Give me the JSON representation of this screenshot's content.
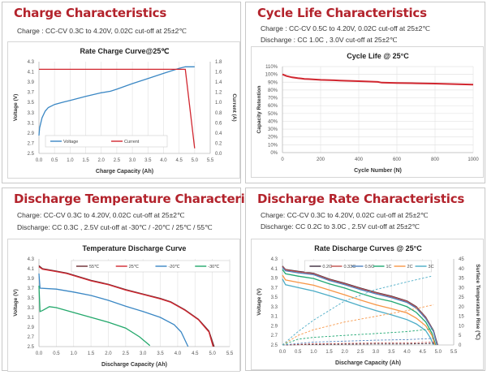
{
  "panels": [
    {
      "title": "Charge Characteristics",
      "conditions": [
        "Charge : CC-CV 0.3C to 4.20V, 0.02C cut-off at 25±2℃"
      ]
    },
    {
      "title": "Cycle Life Characteristics",
      "conditions": [
        "Charge : CC-CV 0.5C to 4.20V, 0.02C cut-off at 25±2℃",
        "Discharge : CC 1.0C , 3.0V cut-off at 25±2℃"
      ]
    },
    {
      "title": "Discharge Temperature Characteristics",
      "conditions": [
        "Charge: CC-CV 0.3C to 4.20V, 0.02C cut-off at 25±2℃",
        "Discharge: CC 0.3C , 2.5V cut-off at -30℃ / -20℃ / 25℃ / 55℃"
      ]
    },
    {
      "title": "Discharge Rate Characteristics",
      "conditions": [
        "Charge: CC-CV 0.3C to 4.20V, 0.02C cut-off at 25±2℃",
        "Discharge: CC 0.2C to 3.0C , 2.5V cut-off at 25±2℃"
      ]
    }
  ],
  "chart_data": [
    {
      "type": "line",
      "title": "Rate Charge Curve@25℃",
      "xlabel": "Charge Capacity  (Ah)",
      "ylabel": "Voltage  (V)",
      "y2label": "Current (A)",
      "xlim": [
        0,
        5.5
      ],
      "xticks": [
        0.0,
        0.5,
        1.0,
        1.5,
        2.0,
        2.5,
        3.0,
        3.5,
        4.0,
        4.5,
        5.0,
        5.5
      ],
      "xfmt": 1,
      "ylim": [
        2.5,
        4.3
      ],
      "yticks": [
        2.5,
        2.7,
        2.9,
        3.1,
        3.3,
        3.5,
        3.7,
        3.9,
        4.1,
        4.3
      ],
      "yfmt": 1,
      "y2lim": [
        0,
        1.8
      ],
      "y2ticks": [
        0.0,
        0.2,
        0.4,
        0.6,
        0.8,
        1.0,
        1.2,
        1.4,
        1.6,
        1.8
      ],
      "y2fmt": 1,
      "grid": "vertical",
      "legend": "bottom-left",
      "series": [
        {
          "name": "Voltage",
          "color": "#3a87c4",
          "axis": "y",
          "x": [
            0,
            0.02,
            0.1,
            0.2,
            0.3,
            0.5,
            0.8,
            1.0,
            1.5,
            2.0,
            2.3,
            2.5,
            3.0,
            3.5,
            4.0,
            4.5,
            4.7,
            5.0
          ],
          "y": [
            2.85,
            3.0,
            3.2,
            3.33,
            3.4,
            3.46,
            3.51,
            3.54,
            3.62,
            3.69,
            3.72,
            3.76,
            3.87,
            3.97,
            4.07,
            4.17,
            4.2,
            4.2
          ]
        },
        {
          "name": "Current",
          "color": "#d1262f",
          "axis": "y2",
          "x": [
            0,
            4.7,
            5.0
          ],
          "y": [
            1.65,
            1.65,
            0.1
          ]
        }
      ]
    },
    {
      "type": "line",
      "title": "Cycle Life @ 25°C",
      "xlabel": "Cycle Number (N)",
      "ylabel": "Capacity Retention",
      "xlim": [
        0,
        1000
      ],
      "xticks": [
        0,
        200,
        400,
        600,
        800,
        1000
      ],
      "xfmt": 0,
      "ylim": [
        0,
        110
      ],
      "yticks": [
        0,
        10,
        20,
        30,
        40,
        50,
        60,
        70,
        80,
        90,
        100,
        110
      ],
      "yfmt": "pct",
      "grid": "both",
      "legend": "none",
      "series": [
        {
          "name": "",
          "color": "#d1262f",
          "axis": "y",
          "x": [
            0,
            20,
            50,
            80,
            100,
            115,
            150,
            200,
            270,
            300,
            400,
            500,
            520,
            600,
            700,
            800,
            900,
            1000
          ],
          "y": [
            100,
            98,
            96.2,
            95.2,
            94.6,
            94.2,
            93.8,
            93,
            92.5,
            92.2,
            91.3,
            90.4,
            89.5,
            89,
            88.6,
            88.2,
            87.6,
            87
          ]
        }
      ]
    },
    {
      "type": "line",
      "title": "Temperature Discharge Curve",
      "xlabel": "Discharge Capacity  (Ah)",
      "ylabel": "Voltage  (V)",
      "xlim": [
        0,
        5.5
      ],
      "xticks": [
        0.0,
        0.5,
        1.0,
        1.5,
        2.0,
        2.5,
        3.0,
        3.5,
        4.0,
        4.5,
        5.0,
        5.5
      ],
      "xfmt": 1,
      "ylim": [
        2.5,
        4.3
      ],
      "yticks": [
        2.5,
        2.7,
        2.9,
        3.1,
        3.3,
        3.5,
        3.7,
        3.9,
        4.1,
        4.3
      ],
      "yfmt": 1,
      "grid": "vertical",
      "legend": "top-right",
      "series": [
        {
          "name": "55℃",
          "color": "#6b2a30",
          "axis": "y",
          "x": [
            0,
            0.1,
            0.5,
            0.8,
            1.5,
            2.0,
            2.5,
            3.0,
            3.5,
            3.8,
            4.2,
            4.6,
            4.9,
            5.05
          ],
          "y": [
            4.16,
            4.1,
            4.05,
            4.01,
            3.86,
            3.78,
            3.67,
            3.58,
            3.49,
            3.42,
            3.26,
            3.06,
            2.82,
            2.5
          ]
        },
        {
          "name": "25℃",
          "color": "#d1262f",
          "axis": "y",
          "x": [
            0,
            0.1,
            0.5,
            0.8,
            1.5,
            2.0,
            2.5,
            3.0,
            3.5,
            3.8,
            4.2,
            4.6,
            4.9,
            5.02
          ],
          "y": [
            4.14,
            4.09,
            4.04,
            4.0,
            3.85,
            3.77,
            3.66,
            3.57,
            3.48,
            3.41,
            3.25,
            3.05,
            2.8,
            2.5
          ]
        },
        {
          "name": "-20℃",
          "color": "#3a87c4",
          "axis": "y",
          "x": [
            0,
            0.03,
            0.5,
            1.0,
            1.5,
            2.0,
            2.5,
            3.0,
            3.5,
            3.9,
            4.1,
            4.3
          ],
          "y": [
            4.0,
            3.7,
            3.68,
            3.62,
            3.55,
            3.45,
            3.33,
            3.22,
            3.1,
            2.95,
            2.8,
            2.5
          ]
        },
        {
          "name": "-30℃",
          "color": "#23a86b",
          "axis": "y",
          "x": [
            0,
            0.03,
            0.1,
            0.3,
            0.5,
            1.0,
            1.5,
            2.0,
            2.5,
            2.9,
            3.2
          ],
          "y": [
            3.75,
            3.22,
            3.24,
            3.32,
            3.3,
            3.2,
            3.1,
            3.0,
            2.88,
            2.7,
            2.52
          ]
        }
      ]
    },
    {
      "type": "line",
      "title": "Rate Discharge Curves @ 25°C",
      "xlabel": "Discharge Capacity (Ah)",
      "ylabel": "Voltage (V)",
      "y2label": "Surface Temperature Rise (℃)",
      "xlim": [
        0,
        5.5
      ],
      "xticks": [
        0.0,
        0.5,
        1.0,
        1.5,
        2.0,
        2.5,
        3.0,
        3.5,
        4.0,
        4.5,
        5.0,
        5.5
      ],
      "xfmt": 1,
      "ylim": [
        2.5,
        4.3
      ],
      "yticks": [
        2.5,
        2.7,
        2.9,
        3.1,
        3.3,
        3.5,
        3.7,
        3.9,
        4.1,
        4.3
      ],
      "yfmt": 1,
      "y2lim": [
        0,
        45
      ],
      "y2ticks": [
        0,
        5,
        10,
        15,
        20,
        25,
        30,
        35,
        40,
        45
      ],
      "y2fmt": 0,
      "grid": "vertical",
      "legend": "top",
      "series": [
        {
          "name": "0.2C",
          "color": "#3b2a3a",
          "axis": "y",
          "x": [
            0,
            0.1,
            0.5,
            1.0,
            1.5,
            2.0,
            2.5,
            3.0,
            3.5,
            4.0,
            4.3,
            4.6,
            4.85,
            4.98
          ],
          "y": [
            4.15,
            4.08,
            4.04,
            4.0,
            3.88,
            3.79,
            3.69,
            3.6,
            3.52,
            3.42,
            3.3,
            3.08,
            2.8,
            2.5
          ]
        },
        {
          "name": "0.33C",
          "color": "#c0504d",
          "axis": "y",
          "x": [
            0,
            0.1,
            0.5,
            1.0,
            1.5,
            2.0,
            2.5,
            3.0,
            3.5,
            4.0,
            4.3,
            4.6,
            4.85,
            4.97
          ],
          "y": [
            4.14,
            4.07,
            4.03,
            3.99,
            3.87,
            3.78,
            3.68,
            3.59,
            3.51,
            3.41,
            3.29,
            3.07,
            2.79,
            2.5
          ]
        },
        {
          "name": "0.5C",
          "color": "#4f81bd",
          "axis": "y",
          "x": [
            0,
            0.1,
            0.5,
            1.0,
            1.5,
            2.0,
            2.5,
            3.0,
            3.5,
            4.0,
            4.3,
            4.6,
            4.85,
            4.96
          ],
          "y": [
            4.12,
            4.05,
            4.01,
            3.97,
            3.85,
            3.76,
            3.66,
            3.57,
            3.49,
            3.39,
            3.27,
            3.05,
            2.78,
            2.5
          ]
        },
        {
          "name": "1C",
          "color": "#1fa872",
          "axis": "y",
          "x": [
            0,
            0.1,
            0.5,
            1.0,
            1.5,
            2.0,
            2.5,
            3.0,
            3.5,
            4.0,
            4.3,
            4.6,
            4.8,
            4.92
          ],
          "y": [
            4.08,
            3.99,
            3.94,
            3.89,
            3.78,
            3.69,
            3.58,
            3.48,
            3.41,
            3.3,
            3.18,
            2.98,
            2.75,
            2.5
          ]
        },
        {
          "name": "2C",
          "color": "#f79646",
          "axis": "y",
          "x": [
            0,
            0.1,
            0.5,
            1.0,
            1.5,
            2.0,
            2.5,
            3.0,
            3.5,
            4.0,
            4.3,
            4.6,
            4.8,
            4.9
          ],
          "y": [
            3.96,
            3.86,
            3.81,
            3.75,
            3.65,
            3.55,
            3.44,
            3.34,
            3.26,
            3.17,
            3.06,
            2.9,
            2.7,
            2.5
          ]
        },
        {
          "name": "3C",
          "color": "#4bacc6",
          "axis": "y",
          "x": [
            0,
            0.1,
            0.5,
            1.0,
            1.5,
            2.0,
            2.5,
            3.0,
            3.5,
            4.0,
            4.3,
            4.6,
            4.75,
            4.85
          ],
          "y": [
            3.88,
            3.76,
            3.7,
            3.63,
            3.53,
            3.43,
            3.32,
            3.22,
            3.13,
            3.03,
            2.94,
            2.8,
            2.65,
            2.5
          ]
        },
        {
          "name": "",
          "color": "#3b2a3a",
          "axis": "y2",
          "dashed": true,
          "x": [
            0,
            1,
            2,
            3,
            4,
            4.9
          ],
          "y": [
            0,
            0.3,
            0.4,
            0.5,
            0.5,
            0.8
          ]
        },
        {
          "name": "",
          "color": "#c0504d",
          "axis": "y2",
          "dashed": true,
          "x": [
            0,
            1,
            2,
            3,
            4,
            4.9
          ],
          "y": [
            0,
            0.6,
            0.8,
            1,
            1,
            1.5
          ]
        },
        {
          "name": "",
          "color": "#4f81bd",
          "axis": "y2",
          "dashed": true,
          "x": [
            0,
            1,
            2,
            3,
            4,
            4.9
          ],
          "y": [
            0,
            1.5,
            2,
            2.5,
            2.8,
            3.5
          ]
        },
        {
          "name": "",
          "color": "#1fa872",
          "axis": "y2",
          "dashed": true,
          "x": [
            0,
            0.5,
            1,
            2,
            3,
            4,
            4.85
          ],
          "y": [
            0,
            3,
            4,
            5,
            6,
            7,
            8.5
          ]
        },
        {
          "name": "",
          "color": "#f79646",
          "axis": "y2",
          "dashed": true,
          "x": [
            0,
            0.5,
            1,
            2,
            3,
            4,
            4.85
          ],
          "y": [
            0,
            5,
            8,
            12,
            15,
            18,
            21
          ]
        },
        {
          "name": "",
          "color": "#4bacc6",
          "axis": "y2",
          "dashed": true,
          "x": [
            0,
            0.5,
            1,
            1.5,
            2,
            3,
            4,
            4.8
          ],
          "y": [
            0,
            7,
            13,
            18,
            23,
            29,
            33,
            36
          ]
        }
      ]
    }
  ]
}
